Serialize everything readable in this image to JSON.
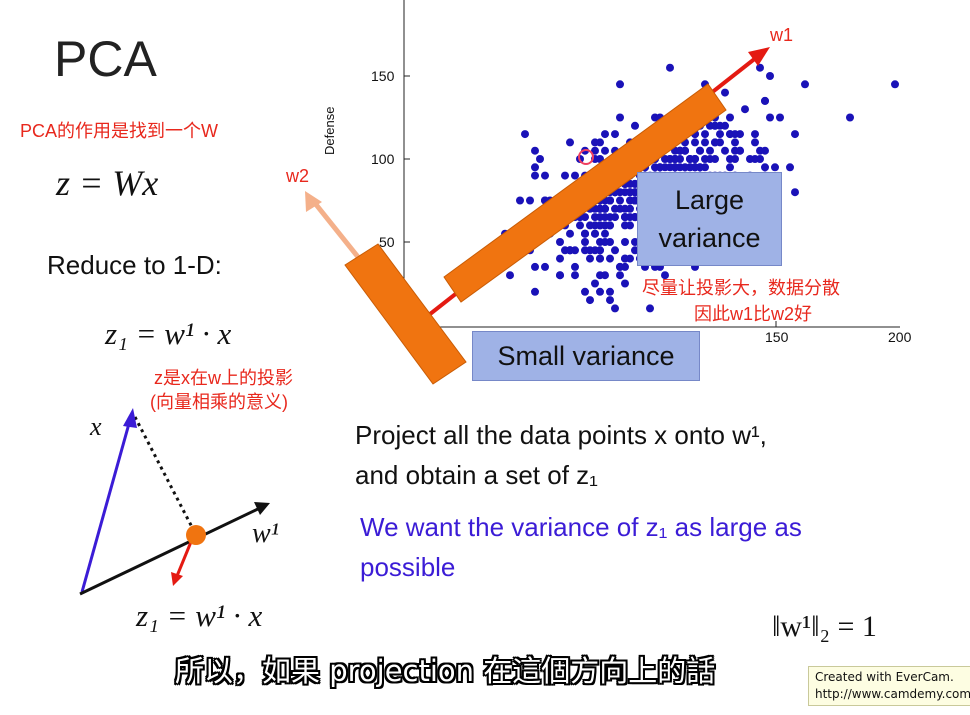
{
  "slide": {
    "title": "PCA",
    "note_purpose": "PCA的作用是找到一个W",
    "eq_z": "z = Wx",
    "reduce_label": "Reduce to 1-D:",
    "eq_z1_top": "z₁ = w¹ · x",
    "note_projection_1": "z是x在w上的投影",
    "note_projection_2": "(向量相乘的意义)",
    "eq_z1_bottom": "z₁ = w¹ · x",
    "diagram_x_label": "x",
    "diagram_w1_label": "w¹",
    "project_line_1": "Project all the data points x onto w¹,",
    "project_line_2": "and obtain a set of z₁",
    "want_line_1": "We want the variance of z₁ as large as",
    "want_line_2": "possible",
    "norm_eq": "‖w¹‖₂ = 1",
    "arrow_w1_label": "w1",
    "arrow_w2_label": "w2",
    "large_variance_1": "Large",
    "large_variance_2": "variance",
    "small_variance": "Small variance",
    "note_better_1": "尽量让投影大，数据分散",
    "note_better_2": "因此w1比w2好",
    "subtitle": "所以，如果 projection 在這個方向上的話",
    "watermark_1": "Created with EverCam.",
    "watermark_2": "http://www.camdemy.com"
  },
  "chart_data": {
    "type": "scatter",
    "ylabel": "Defense",
    "xlabel": "",
    "y_ticks": [
      "150",
      "100",
      "50"
    ],
    "x_ticks": [
      "150",
      "200"
    ],
    "xlim": [
      50,
      200
    ],
    "ylim": [
      10,
      200
    ],
    "point_color": "#1a12b8",
    "seed": 7,
    "n_points": 520,
    "mean": [
      100,
      80
    ],
    "std": [
      25,
      27
    ],
    "corr": 0.55
  },
  "colors": {
    "orange": "#f07410",
    "red_arrow": "#e41a12",
    "w2_arrow": "#f4b08a",
    "note_red": "#e8281d",
    "blue_text": "#3b1cd6"
  }
}
